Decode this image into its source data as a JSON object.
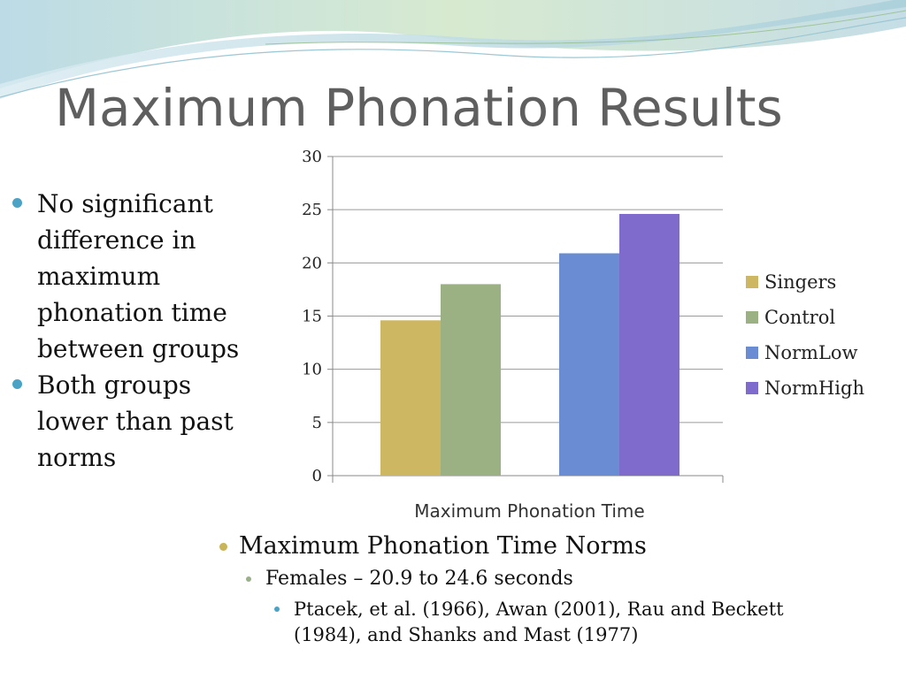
{
  "slide": {
    "title": "Maximum Phonation Results",
    "bullets": [
      "No significant difference in maximum phonation time between groups",
      "Both groups lower than past norms"
    ],
    "notes": {
      "level1": "Maximum Phonation Time Norms",
      "level2": "Females – 20.9 to 24.6 seconds",
      "level3": "Ptacek, et al. (1966), Awan (2001), Rau and Beckett (1984), and Shanks and Mast (1977)"
    },
    "colors": {
      "title": "#5f5f5f",
      "bullet_blue": "#4aa3c5",
      "bullet_gold": "#c9b457",
      "bullet_green": "#9ab08a"
    }
  },
  "chart_data": {
    "type": "bar",
    "title": "",
    "xlabel": "Maximum Phonation Time",
    "ylabel": "",
    "ylim": [
      0,
      30
    ],
    "yticks": [
      0,
      5,
      10,
      15,
      20,
      25,
      30
    ],
    "grid": true,
    "legend_position": "right",
    "series": [
      {
        "name": "Singers",
        "value": 14.6,
        "color": "#cdb762"
      },
      {
        "name": "Control",
        "value": 18.0,
        "color": "#9bb083"
      },
      {
        "name": "NormLow",
        "value": 20.9,
        "color": "#6a8cd2"
      },
      {
        "name": "NormHigh",
        "value": 24.6,
        "color": "#7f6bcb"
      }
    ]
  }
}
